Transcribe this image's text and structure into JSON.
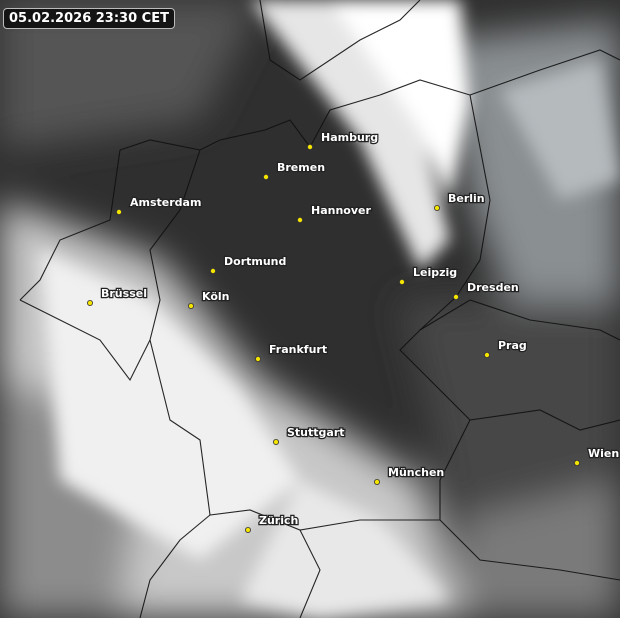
{
  "timestamp": "05.02.2026 23:30 CET",
  "colors": {
    "city_dot": "#f5e400",
    "label": "#ffffff",
    "background": "#2e2e2e"
  },
  "cities": [
    {
      "name": "Hamburg"
    },
    {
      "name": "Bremen"
    },
    {
      "name": "Amsterdam"
    },
    {
      "name": "Hannover"
    },
    {
      "name": "Berlin"
    },
    {
      "name": "Dortmund"
    },
    {
      "name": "Leipzig"
    },
    {
      "name": "Dresden"
    },
    {
      "name": "Brüssel"
    },
    {
      "name": "Köln"
    },
    {
      "name": "Frankfurt"
    },
    {
      "name": "Prag"
    },
    {
      "name": "Stuttgart"
    },
    {
      "name": "München"
    },
    {
      "name": "Wien"
    },
    {
      "name": "Zürich"
    }
  ]
}
